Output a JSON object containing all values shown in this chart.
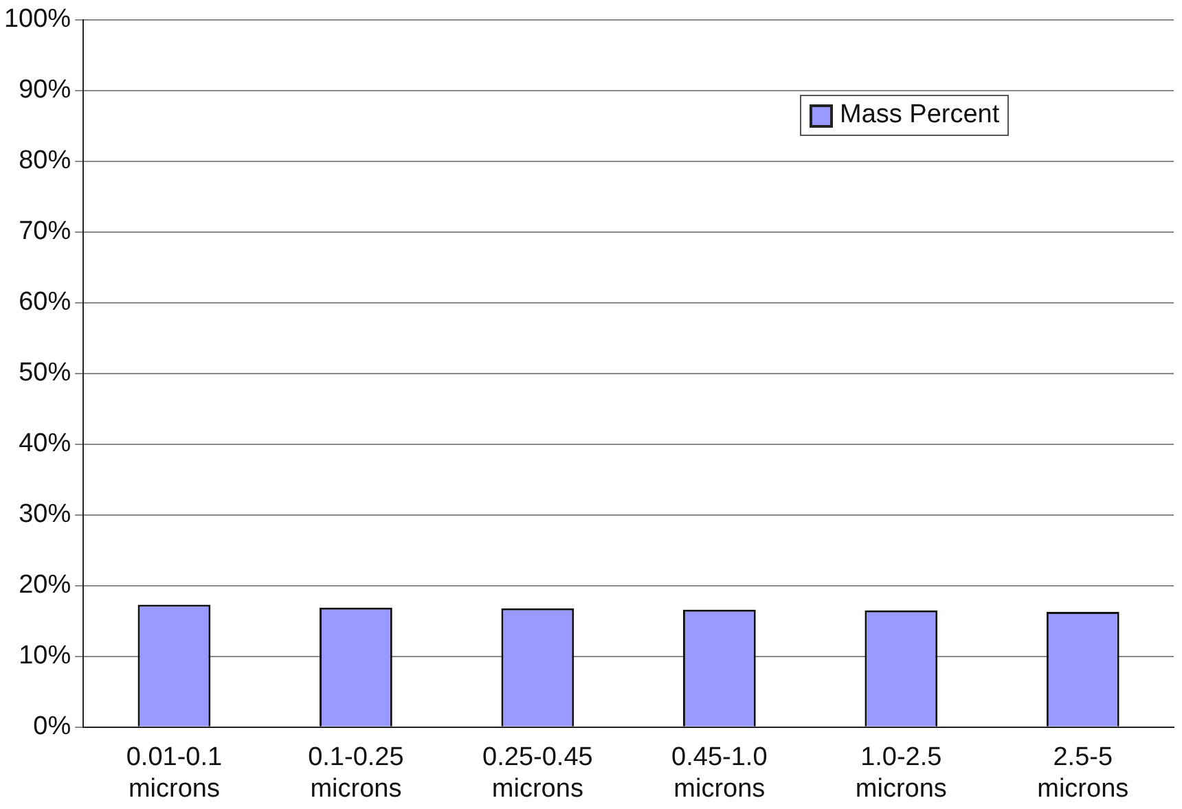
{
  "chart_data": {
    "type": "bar",
    "categories": [
      "0.01-0.1 microns",
      "0.1-0.25 microns",
      "0.25-0.45 microns",
      "0.45-1.0 microns",
      "1.0-2.5 microns",
      "2.5-5 microns"
    ],
    "series": [
      {
        "name": "Mass Percent",
        "color": "#9999ff",
        "values": [
          17.3,
          16.9,
          16.8,
          16.6,
          16.5,
          16.3
        ]
      }
    ],
    "ylim": [
      0,
      100
    ],
    "yticks": [
      {
        "value": 0,
        "label": "0%"
      },
      {
        "value": 10,
        "label": "10%"
      },
      {
        "value": 20,
        "label": "20%"
      },
      {
        "value": 30,
        "label": "30%"
      },
      {
        "value": 40,
        "label": "40%"
      },
      {
        "value": 50,
        "label": "50%"
      },
      {
        "value": 60,
        "label": "60%"
      },
      {
        "value": 70,
        "label": "70%"
      },
      {
        "value": 80,
        "label": "80%"
      },
      {
        "value": 90,
        "label": "90%"
      },
      {
        "value": 100,
        "label": "100%"
      }
    ],
    "grid": "y",
    "legend": "top right"
  }
}
